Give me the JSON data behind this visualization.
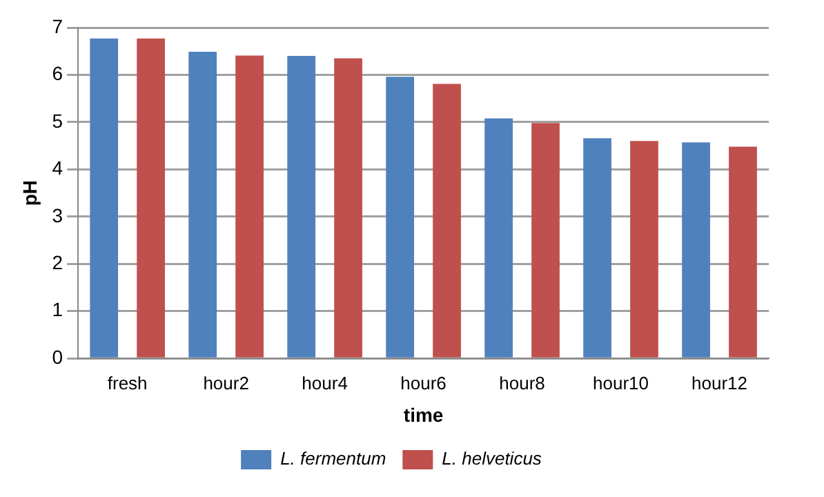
{
  "chart_data": {
    "type": "bar",
    "xlabel": "time",
    "ylabel": "pH",
    "categories": [
      "fresh",
      "hour2",
      "hour4",
      "hour6",
      "hour8",
      "hour10",
      "hour12"
    ],
    "series": [
      {
        "name": "L. fermentum",
        "color": "#4f81bd",
        "values": [
          6.77,
          6.49,
          6.4,
          5.96,
          5.08,
          4.66,
          4.57
        ]
      },
      {
        "name": "L. helveticus",
        "color": "#c0504d",
        "values": [
          6.77,
          6.41,
          6.35,
          5.81,
          4.98,
          4.6,
          4.48
        ]
      }
    ],
    "ylim": [
      0,
      7
    ],
    "yticks": [
      0,
      1,
      2,
      3,
      4,
      5,
      6,
      7
    ],
    "grid": "y",
    "legend": "bottom"
  }
}
